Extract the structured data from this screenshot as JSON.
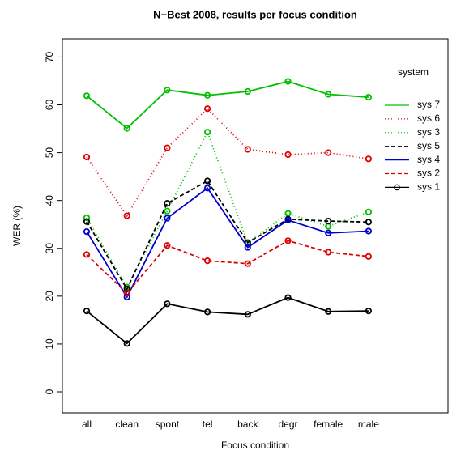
{
  "chart_data": {
    "type": "line",
    "title": "N−Best 2008, results per focus condition",
    "x_label": "Focus condition",
    "y_label": "WER (%)",
    "legend_title": "system",
    "legend": "top-right",
    "categories": [
      "all",
      "clean",
      "spont",
      "tel",
      "back",
      "degr",
      "female",
      "male"
    ],
    "ylim": [
      -4.4,
      73.8
    ],
    "yticks": [
      0,
      10,
      20,
      30,
      40,
      50,
      60,
      70
    ],
    "series": [
      {
        "name": "sys 7",
        "color": "#00c000",
        "linestyle": "solid",
        "values": [
          61.9,
          55.1,
          63.1,
          62.0,
          62.8,
          64.9,
          62.2,
          61.6
        ]
      },
      {
        "name": "sys 6",
        "color": "#e00000",
        "linestyle": "dotted",
        "values": [
          49.1,
          36.8,
          51.0,
          59.2,
          50.7,
          49.6,
          50.0,
          48.7
        ]
      },
      {
        "name": "sys 3",
        "color": "#00c000",
        "linestyle": "dotted",
        "values": [
          36.4,
          21.9,
          37.8,
          54.3,
          31.1,
          37.3,
          34.6,
          37.6
        ]
      },
      {
        "name": "sys 5",
        "color": "#000000",
        "linestyle": "dashed",
        "values": [
          35.6,
          21.5,
          39.4,
          44.1,
          31.2,
          36.1,
          35.7,
          35.5
        ]
      },
      {
        "name": "sys 4",
        "color": "#0000d0",
        "linestyle": "solid",
        "values": [
          33.5,
          19.8,
          36.3,
          42.6,
          30.2,
          35.9,
          33.2,
          33.6
        ]
      },
      {
        "name": "sys 2",
        "color": "#e00000",
        "linestyle": "dashed",
        "values": [
          28.7,
          20.6,
          30.6,
          27.4,
          26.8,
          31.6,
          29.2,
          28.3
        ]
      },
      {
        "name": "sys 1",
        "color": "#000000",
        "linestyle": "solid",
        "values": [
          16.9,
          10.1,
          18.4,
          16.7,
          16.2,
          19.7,
          16.8,
          16.9
        ]
      }
    ]
  }
}
